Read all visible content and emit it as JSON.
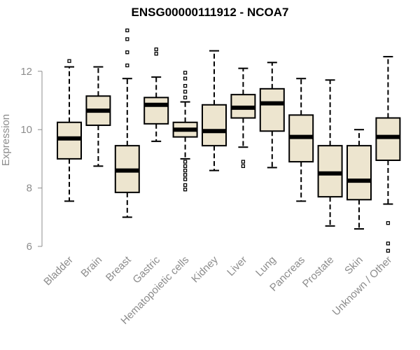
{
  "chart_data": {
    "type": "boxplot",
    "title": "ENSG00000111912 - NCOA7",
    "xlabel": "",
    "ylabel": "Expression",
    "ylim": [
      6,
      13.5
    ],
    "yticks": [
      6,
      8,
      10,
      12
    ],
    "categories": [
      "Bladder",
      "Brain",
      "Breast",
      "Gastric",
      "Hematopoietic cells",
      "Kidney",
      "Liver",
      "Lung",
      "Pancreas",
      "Prostate",
      "Skin",
      "Unknown / Other"
    ],
    "boxes": [
      {
        "name": "Bladder",
        "whisker_low": 7.55,
        "q1": 9.0,
        "median": 9.7,
        "q3": 10.25,
        "whisker_high": 12.15,
        "outliers": [
          12.35
        ]
      },
      {
        "name": "Brain",
        "whisker_low": 8.75,
        "q1": 10.15,
        "median": 10.65,
        "q3": 11.15,
        "whisker_high": 12.15,
        "outliers": []
      },
      {
        "name": "Breast",
        "whisker_low": 7.0,
        "q1": 7.85,
        "median": 8.6,
        "q3": 9.45,
        "whisker_high": 11.75,
        "outliers": [
          12.2,
          12.65,
          13.1,
          13.4
        ]
      },
      {
        "name": "Gastric",
        "whisker_low": 9.6,
        "q1": 10.2,
        "median": 10.85,
        "q3": 11.1,
        "whisker_high": 11.8,
        "outliers": [
          12.6,
          12.75
        ]
      },
      {
        "name": "Hematopoietic cells",
        "whisker_low": 9.0,
        "q1": 9.75,
        "median": 10.0,
        "q3": 10.25,
        "whisker_high": 10.95,
        "outliers": [
          7.95,
          8.1,
          8.3,
          8.45,
          8.6,
          8.75,
          8.9,
          11.1,
          11.3,
          11.5,
          11.75,
          11.95
        ]
      },
      {
        "name": "Kidney",
        "whisker_low": 8.6,
        "q1": 9.45,
        "median": 9.95,
        "q3": 10.85,
        "whisker_high": 12.7,
        "outliers": []
      },
      {
        "name": "Liver",
        "whisker_low": 9.4,
        "q1": 10.4,
        "median": 10.75,
        "q3": 11.2,
        "whisker_high": 12.1,
        "outliers": [
          8.75,
          8.9
        ]
      },
      {
        "name": "Lung",
        "whisker_low": 8.7,
        "q1": 9.95,
        "median": 10.9,
        "q3": 11.4,
        "whisker_high": 12.3,
        "outliers": []
      },
      {
        "name": "Pancreas",
        "whisker_low": 7.55,
        "q1": 8.9,
        "median": 9.75,
        "q3": 10.5,
        "whisker_high": 11.75,
        "outliers": []
      },
      {
        "name": "Prostate",
        "whisker_low": 6.7,
        "q1": 7.7,
        "median": 8.5,
        "q3": 9.45,
        "whisker_high": 11.7,
        "outliers": []
      },
      {
        "name": "Skin",
        "whisker_low": 6.6,
        "q1": 7.6,
        "median": 8.25,
        "q3": 9.45,
        "whisker_high": 10.0,
        "outliers": []
      },
      {
        "name": "Unknown / Other",
        "whisker_low": 7.45,
        "q1": 8.95,
        "median": 9.75,
        "q3": 10.4,
        "whisker_high": 12.5,
        "outliers": [
          5.85,
          6.1,
          6.8
        ]
      }
    ],
    "colors": {
      "box_fill": "#ede5cf",
      "stroke": "#000000",
      "axis_text": "#8c8c8c"
    }
  }
}
